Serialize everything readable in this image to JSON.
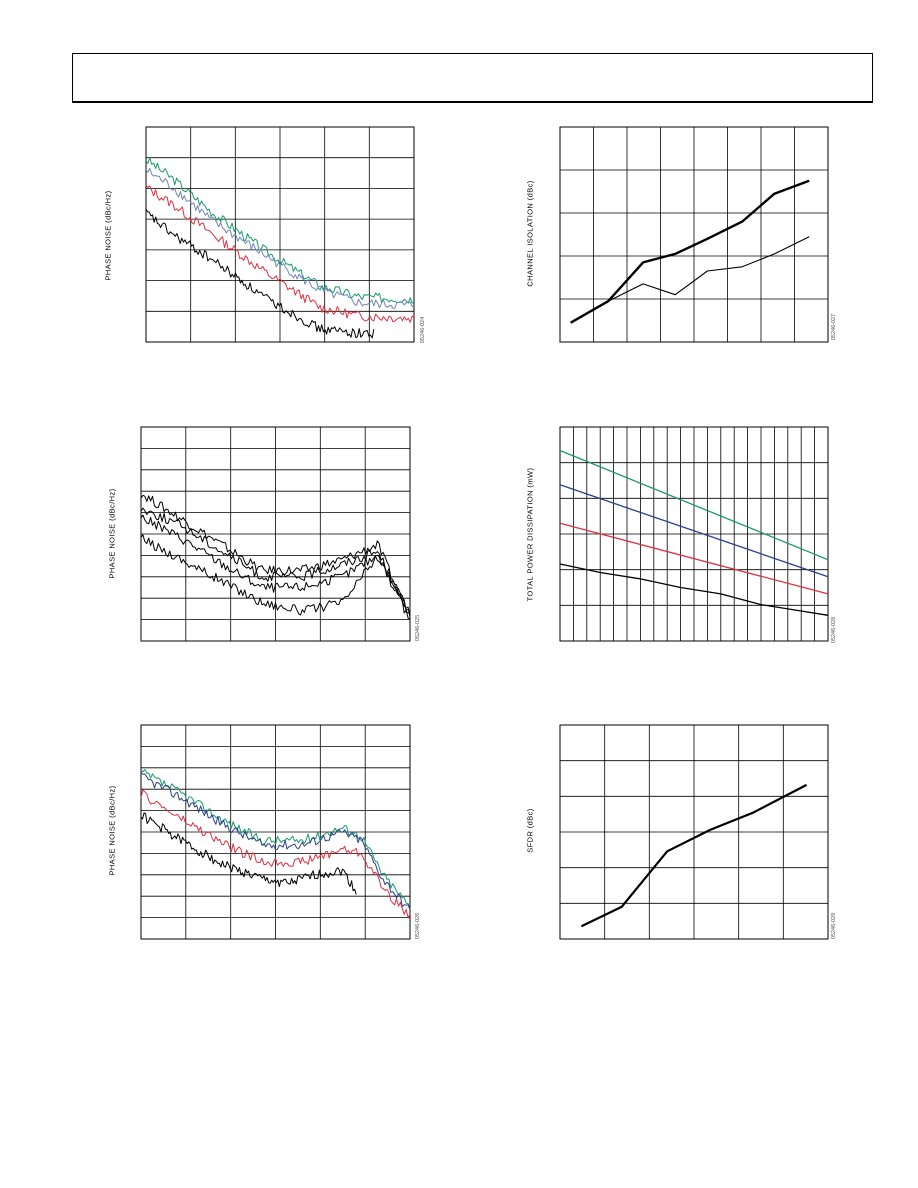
{
  "colors": {
    "green": "#1a9a6a",
    "blue": "#6f86b8",
    "red": "#e03040",
    "black": "#000000",
    "navy": "#2a3f8f"
  },
  "charts": [
    {
      "id": "c1",
      "ylabel": "PHASE NOISE (dBc/Hz)",
      "code": "05246-024",
      "chart_data": {
        "type": "line",
        "series": [
          {
            "color": "green",
            "x": [
              0,
              0.1,
              0.25,
              0.45,
              0.65,
              0.8,
              1.0
            ],
            "y": [
              0.85,
              0.76,
              0.6,
              0.42,
              0.26,
              0.21,
              0.2
            ]
          },
          {
            "color": "blue",
            "x": [
              0,
              0.1,
              0.25,
              0.45,
              0.65,
              0.8,
              1.0
            ],
            "y": [
              0.8,
              0.72,
              0.56,
              0.4,
              0.24,
              0.18,
              0.17
            ]
          },
          {
            "color": "red",
            "x": [
              0,
              0.1,
              0.25,
              0.45,
              0.65,
              0.8,
              1.0
            ],
            "y": [
              0.72,
              0.64,
              0.5,
              0.32,
              0.16,
              0.12,
              0.11
            ]
          },
          {
            "color": "black",
            "x": [
              0,
              0.1,
              0.25,
              0.45,
              0.65,
              0.8,
              0.85
            ],
            "y": [
              0.6,
              0.5,
              0.38,
              0.2,
              0.06,
              0.04,
              0.04
            ]
          }
        ],
        "gridx": 6,
        "gridy": 7,
        "grid": true
      }
    },
    {
      "id": "c2",
      "ylabel": "PHASE NOISE (dBc/Hz)",
      "code": "05246-025",
      "chart_data": {
        "type": "line",
        "series": [
          {
            "color": "black",
            "x": [
              0,
              0.15,
              0.3,
              0.45,
              0.6,
              0.75,
              0.88,
              0.95,
              1.0
            ],
            "y": [
              0.69,
              0.57,
              0.45,
              0.33,
              0.33,
              0.38,
              0.45,
              0.25,
              0.12
            ]
          },
          {
            "color": "black",
            "x": [
              0,
              0.15,
              0.3,
              0.45,
              0.6,
              0.75,
              0.88,
              0.95,
              1.0
            ],
            "y": [
              0.62,
              0.54,
              0.42,
              0.3,
              0.3,
              0.36,
              0.42,
              0.25,
              0.12
            ]
          },
          {
            "color": "black",
            "x": [
              0,
              0.15,
              0.3,
              0.45,
              0.6,
              0.75,
              0.88,
              0.95,
              1.0
            ],
            "y": [
              0.58,
              0.48,
              0.36,
              0.25,
              0.25,
              0.3,
              0.4,
              0.24,
              0.12
            ]
          },
          {
            "color": "black",
            "x": [
              0,
              0.15,
              0.3,
              0.45,
              0.6,
              0.75,
              0.88,
              0.95,
              1.0
            ],
            "y": [
              0.48,
              0.38,
              0.28,
              0.18,
              0.14,
              0.18,
              0.4,
              0.22,
              0.1
            ]
          }
        ],
        "gridx": 6,
        "gridy": 10,
        "grid": true
      }
    },
    {
      "id": "c3",
      "ylabel": "PHASE NOISE (dBc/Hz)",
      "code": "05246-026",
      "chart_data": {
        "type": "line",
        "series": [
          {
            "color": "green",
            "x": [
              0,
              0.15,
              0.3,
              0.45,
              0.6,
              0.75,
              0.82,
              0.9,
              1.0
            ],
            "y": [
              0.78,
              0.68,
              0.56,
              0.46,
              0.46,
              0.52,
              0.48,
              0.3,
              0.15
            ]
          },
          {
            "color": "navy",
            "x": [
              0,
              0.15,
              0.3,
              0.45,
              0.6,
              0.75,
              0.82,
              0.9,
              1.0
            ],
            "y": [
              0.76,
              0.66,
              0.54,
              0.44,
              0.44,
              0.5,
              0.46,
              0.28,
              0.13
            ]
          },
          {
            "color": "red",
            "x": [
              0,
              0.15,
              0.3,
              0.45,
              0.6,
              0.75,
              0.82,
              0.9,
              1.0
            ],
            "y": [
              0.68,
              0.56,
              0.45,
              0.36,
              0.36,
              0.42,
              0.4,
              0.24,
              0.1
            ]
          },
          {
            "color": "black",
            "x": [
              0,
              0.15,
              0.3,
              0.45,
              0.55,
              0.65,
              0.75,
              0.8
            ],
            "y": [
              0.58,
              0.46,
              0.35,
              0.28,
              0.26,
              0.3,
              0.32,
              0.22
            ]
          }
        ],
        "gridx": 6,
        "gridy": 10,
        "grid": true
      }
    },
    {
      "id": "c4",
      "ylabel": "CHANNEL ISOLATION (dBc)",
      "code": "05246-027",
      "chart_data": {
        "type": "line",
        "series": [
          {
            "color": "black",
            "width": 2.4,
            "x": [
              0.04,
              0.18,
              0.31,
              0.43,
              0.55,
              0.68,
              0.8,
              0.93
            ],
            "y": [
              0.09,
              0.19,
              0.37,
              0.41,
              0.48,
              0.56,
              0.69,
              0.75
            ]
          },
          {
            "color": "black",
            "width": 1.1,
            "x": [
              0.04,
              0.18,
              0.31,
              0.43,
              0.55,
              0.68,
              0.8,
              0.93
            ],
            "y": [
              0.09,
              0.19,
              0.27,
              0.22,
              0.33,
              0.35,
              0.41,
              0.49
            ]
          }
        ],
        "gridx": 8,
        "gridy": 5,
        "grid": true
      }
    },
    {
      "id": "c5",
      "ylabel": "TOTAL POWER DISSIPATION (mW)",
      "code": "05246-028",
      "chart_data": {
        "type": "line",
        "series": [
          {
            "color": "green",
            "x": [
              0,
              1
            ],
            "y": [
              0.89,
              0.38
            ]
          },
          {
            "color": "navy",
            "x": [
              0,
              1
            ],
            "y": [
              0.73,
              0.3
            ]
          },
          {
            "color": "red",
            "x": [
              0,
              1
            ],
            "y": [
              0.55,
              0.22
            ]
          },
          {
            "color": "black",
            "x": [
              0,
              0.15,
              0.3,
              0.45,
              0.6,
              0.75,
              0.9,
              1
            ],
            "y": [
              0.36,
              0.32,
              0.29,
              0.25,
              0.22,
              0.17,
              0.14,
              0.12
            ]
          }
        ],
        "gridx": 20,
        "gridy": 6,
        "grid": true
      }
    },
    {
      "id": "c6",
      "ylabel": "SFDR (dBc)",
      "code": "05246-029",
      "chart_data": {
        "type": "line",
        "series": [
          {
            "color": "black",
            "width": 2.2,
            "x": [
              0.08,
              0.23,
              0.4,
              0.56,
              0.72,
              0.92
            ],
            "y": [
              0.06,
              0.15,
              0.41,
              0.51,
              0.59,
              0.72
            ]
          }
        ],
        "gridx": 6,
        "gridy": 6,
        "grid": true
      }
    }
  ]
}
